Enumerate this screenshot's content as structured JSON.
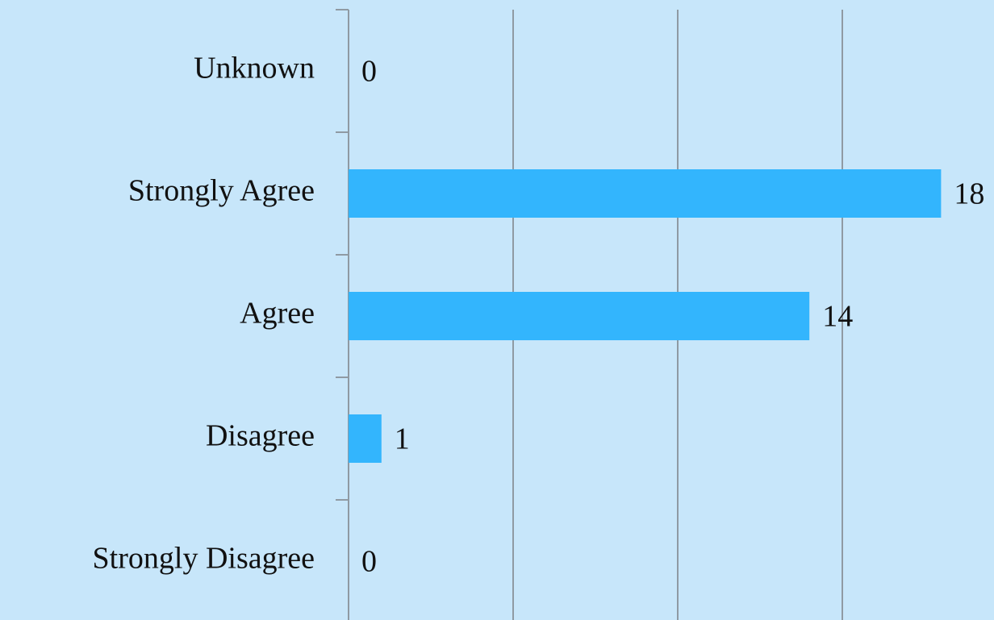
{
  "chart_data": {
    "type": "hbar",
    "categories": [
      "Unknown",
      "Strongly Agree",
      "Agree",
      "Disagree",
      "Strongly Disagree"
    ],
    "values": [
      0,
      18,
      14,
      1,
      0
    ],
    "color": "#33b5fd",
    "xlim": [
      0,
      20
    ],
    "xticks": [
      0,
      5,
      10,
      15,
      20
    ],
    "tick_labels": false,
    "grid": true,
    "data_labels": true
  }
}
